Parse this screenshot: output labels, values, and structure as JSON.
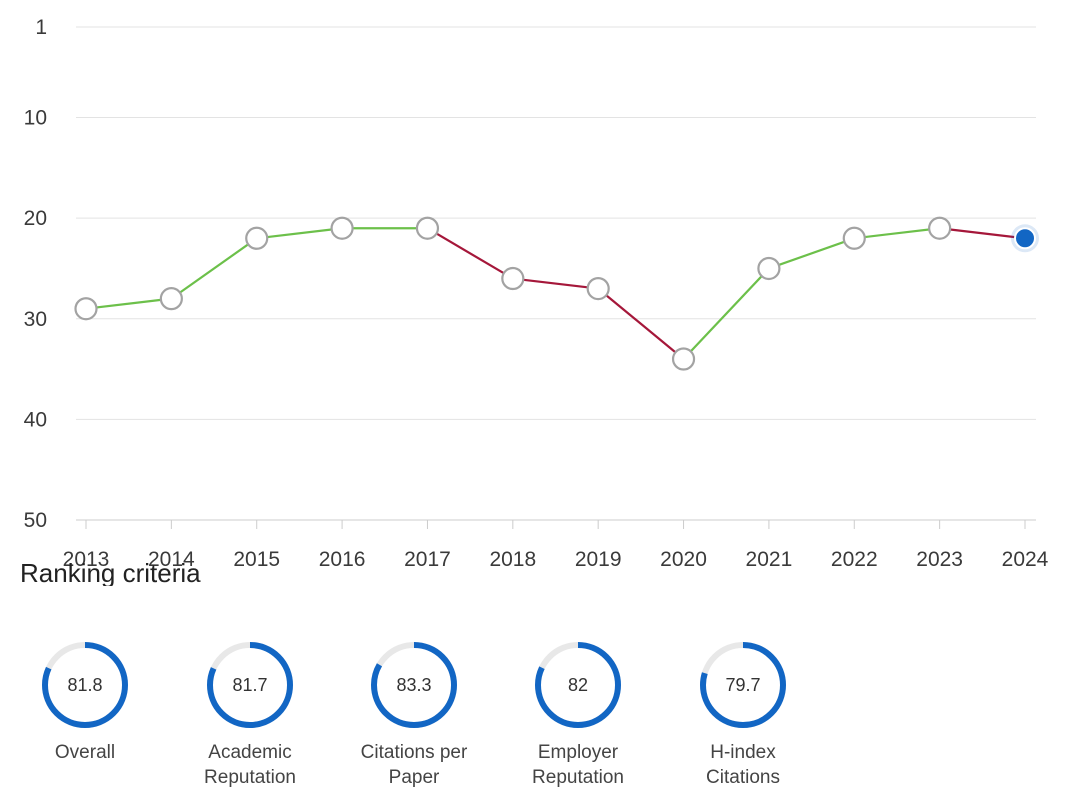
{
  "chart_data": {
    "type": "line",
    "title": "",
    "xlabel": "",
    "ylabel": "",
    "y_reversed": true,
    "ylim": [
      1,
      50
    ],
    "y_ticks": [
      1,
      10,
      20,
      30,
      40,
      50
    ],
    "x": [
      "2013",
      "2014",
      "2015",
      "2016",
      "2017",
      "2018",
      "2019",
      "2020",
      "2021",
      "2022",
      "2023",
      "2024"
    ],
    "series": [
      {
        "values": [
          29,
          28,
          22,
          21,
          21,
          26,
          27,
          34,
          25,
          22,
          21,
          22
        ]
      }
    ],
    "colors": {
      "improving": "#6cc04a",
      "declining": "#a5173a",
      "marker_fill": "#ffffff",
      "marker_stroke": "#a3a3a3",
      "highlight": "#1266c4",
      "grid": "#e3e3e3"
    },
    "highlighted_point": "2024",
    "grid": true
  },
  "section": {
    "title": "Ranking criteria"
  },
  "criteria": [
    {
      "value": "81.8",
      "label_lines": [
        "Overall"
      ],
      "fraction": 0.818
    },
    {
      "value": "81.7",
      "label_lines": [
        "Academic",
        "Reputation"
      ],
      "fraction": 0.817
    },
    {
      "value": "83.3",
      "label_lines": [
        "Citations per",
        "Paper"
      ],
      "fraction": 0.833
    },
    {
      "value": "82",
      "label_lines": [
        "Employer",
        "Reputation"
      ],
      "fraction": 0.82
    },
    {
      "value": "79.7",
      "label_lines": [
        "H-index",
        "Citations"
      ],
      "fraction": 0.797
    }
  ],
  "gauge_colors": {
    "track": "#e8e8e8",
    "fill": "#1266c4"
  }
}
